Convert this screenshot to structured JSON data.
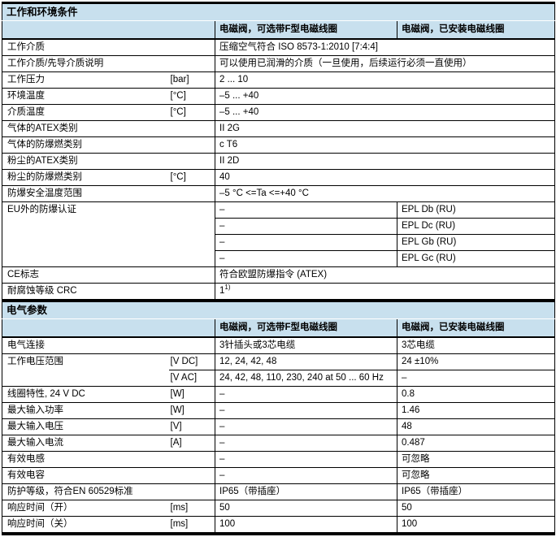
{
  "colors": {
    "section_header_bg": "#c8e0ee",
    "border": "#000000",
    "text": "#000000"
  },
  "columns": {
    "c1": "电磁阀，可选带F型电磁线圈",
    "c2": "电磁阀，已安装电磁线圈"
  },
  "s1": {
    "title": "工作和环境条件",
    "rows": [
      {
        "label": "工作介质",
        "value": "压缩空气符合 ISO 8573-1:2010 [7:4:4]"
      },
      {
        "label": "工作介质/先导介质说明",
        "value": "可以使用已润滑的介质（一旦使用，后续运行必须一直使用）"
      },
      {
        "label": "工作压力",
        "unit": "[bar]",
        "value": "2 ... 10"
      },
      {
        "label": "环境温度",
        "unit": "[°C]",
        "value": "–5 ... +40"
      },
      {
        "label": "介质温度",
        "unit": "[°C]",
        "value": "–5 ... +40"
      },
      {
        "label": "气体的ATEX类别",
        "value": "II 2G"
      },
      {
        "label": "气体的防爆燃类别",
        "value": "c T6"
      },
      {
        "label": "粉尘的ATEX类别",
        "value": "II 2D"
      },
      {
        "label": "粉尘的防爆燃类别",
        "unit": "[°C]",
        "value": "40"
      },
      {
        "label": "防爆安全温度范围",
        "value": "–5 °C <=Ta <=+40 °C"
      },
      {
        "label": "EU外的防爆认证",
        "lines": [
          {
            "v1": "–",
            "v2": "EPL Db (RU)"
          },
          {
            "v1": "–",
            "v2": "EPL Dc (RU)"
          },
          {
            "v1": "–",
            "v2": "EPL Gb (RU)"
          },
          {
            "v1": "–",
            "v2": "EPL Gc (RU)"
          }
        ]
      },
      {
        "label": "CE标志",
        "value": "符合欧盟防爆指令 (ATEX)"
      },
      {
        "label": "耐腐蚀等级 CRC",
        "value": "1",
        "value_sup": "1)"
      }
    ]
  },
  "s2": {
    "title": "电气参数",
    "rows": [
      {
        "label": "电气连接",
        "v1": "3针插头或3芯电缆",
        "v2": "3芯电缆"
      },
      {
        "label": "工作电压范围",
        "lines": [
          {
            "unit": "[V DC]",
            "v1": "12, 24, 42, 48",
            "v2": "24 ±10%"
          },
          {
            "unit": "[V AC]",
            "v1": "24, 42, 48, 110, 230, 240 at 50 ... 60 Hz",
            "v2": "–"
          }
        ]
      },
      {
        "label": "线圈特性, 24 V DC",
        "unit": "[W]",
        "v1": "–",
        "v2": "0.8"
      },
      {
        "label": "最大输入功率",
        "unit": "[W]",
        "v1": "–",
        "v2": "1.46"
      },
      {
        "label": "最大输入电压",
        "unit": "[V]",
        "v1": "–",
        "v2": "48"
      },
      {
        "label": "最大输入电流",
        "unit": "[A]",
        "v1": "–",
        "v2": "0.487"
      },
      {
        "label": "有效电感",
        "v1": "–",
        "v2": "可忽略"
      },
      {
        "label": "有效电容",
        "v1": "–",
        "v2": "可忽略"
      },
      {
        "label": "防护等级，符合EN 60529标准",
        "v1": "IP65（带插座）",
        "v2": "IP65（带插座）"
      },
      {
        "label": "响应时间（开）",
        "unit": "[ms]",
        "v1": "50",
        "v2": "50"
      },
      {
        "label": "响应时间（关）",
        "unit": "[ms]",
        "v1": "100",
        "v2": "100"
      }
    ]
  }
}
